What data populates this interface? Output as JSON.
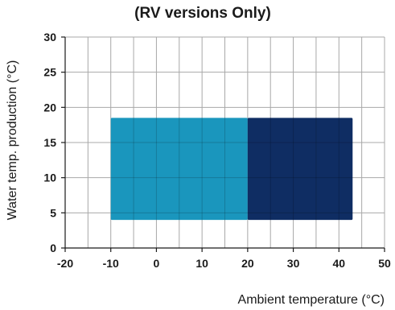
{
  "chart_data": {
    "type": "area",
    "title": "(RV versions Only)",
    "xlabel": "Ambient temperature (°C)",
    "ylabel": "Water temp. production (°C)",
    "xlim": [
      -20,
      50
    ],
    "ylim": [
      0,
      30
    ],
    "x_ticks": [
      -20,
      -10,
      0,
      10,
      20,
      30,
      40,
      50
    ],
    "y_ticks": [
      0,
      5,
      10,
      15,
      20,
      25,
      30
    ],
    "x_gridlines_step": 5,
    "y_gridlines_step": 5,
    "grid": true,
    "regions": [
      {
        "x_range": [
          -10,
          20
        ],
        "y_range": [
          4,
          18.5
        ],
        "color": "#1a96bd"
      },
      {
        "x_range": [
          20,
          43
        ],
        "y_range": [
          4,
          18.5
        ],
        "color": "#0f2d63"
      }
    ]
  }
}
